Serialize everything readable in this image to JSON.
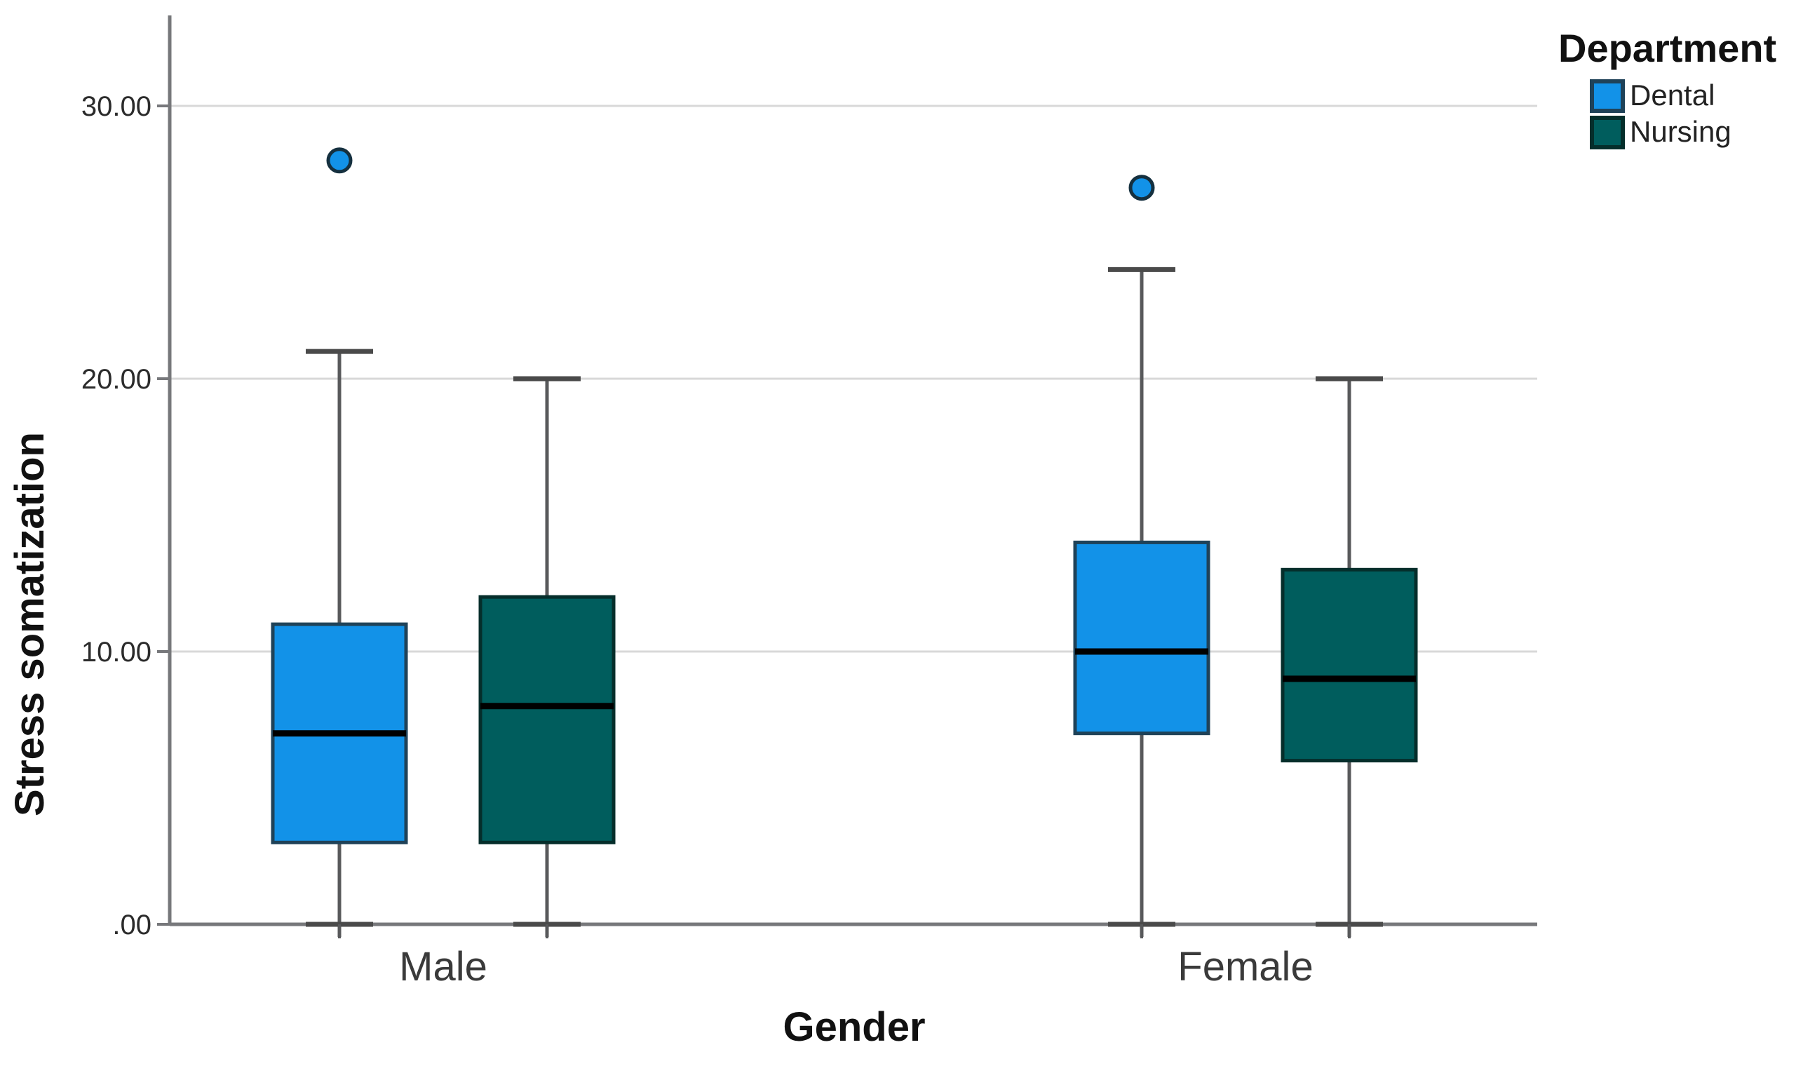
{
  "chart_data": {
    "type": "boxplot",
    "title": "",
    "xlabel": "Gender",
    "ylabel": "Stress somatization",
    "categories": [
      "Male",
      "Female"
    ],
    "yticks": [
      {
        "value": 0,
        "label": ".00"
      },
      {
        "value": 10,
        "label": "10.00"
      },
      {
        "value": 20,
        "label": "20.00"
      },
      {
        "value": 30,
        "label": "30.00"
      }
    ],
    "ylim": [
      0,
      33.3
    ],
    "grid": true,
    "legend": {
      "title": "Department",
      "entries": [
        {
          "label": "Dental",
          "color": "#1292E8",
          "border": "#1F4258"
        },
        {
          "label": "Nursing",
          "color": "#005D5D",
          "border": "#052E2B"
        }
      ],
      "position": "top-right"
    },
    "series": [
      {
        "name": "Dental",
        "fill": "#1292E8",
        "border": "#1F4258",
        "boxes": [
          {
            "category": "Male",
            "min": 0,
            "q1": 3,
            "median": 7,
            "q3": 11,
            "max": 21,
            "outliers": [
              28
            ]
          },
          {
            "category": "Female",
            "min": 0,
            "q1": 7,
            "median": 10,
            "q3": 14,
            "max": 24,
            "outliers": [
              27
            ]
          }
        ]
      },
      {
        "name": "Nursing",
        "fill": "#005D5D",
        "border": "#052E2B",
        "boxes": [
          {
            "category": "Male",
            "min": 0,
            "q1": 3,
            "median": 8,
            "q3": 12,
            "max": 20,
            "outliers": []
          },
          {
            "category": "Female",
            "min": 0,
            "q1": 6,
            "median": 9,
            "q3": 13,
            "max": 20,
            "outliers": []
          }
        ]
      }
    ],
    "colors": {
      "grid": "#D8D8D8",
      "axis": "#77787B",
      "whisker": "#58595B",
      "median": "#000000",
      "tick_text": "#2B2B2B",
      "title_text": "#111111"
    }
  }
}
